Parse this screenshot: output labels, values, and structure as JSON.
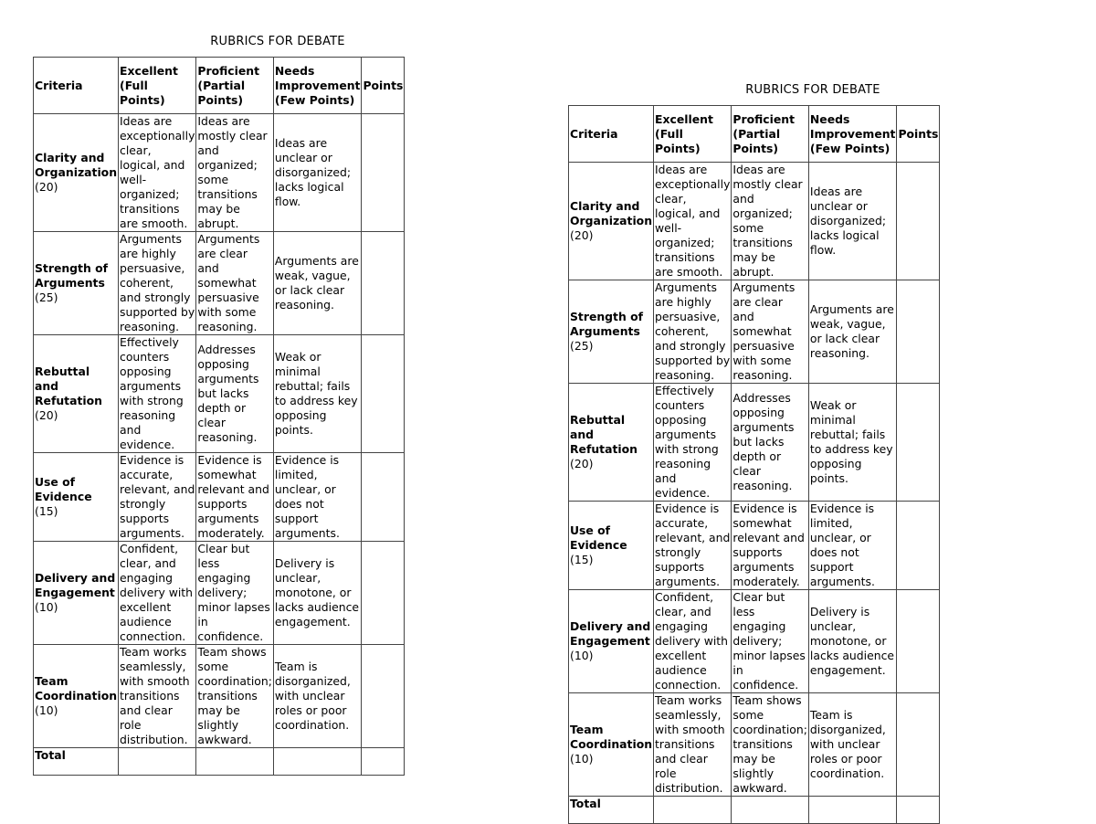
{
  "title": "RUBRICS FOR DEBATE",
  "headers": [
    "Criteria",
    "Excellent (Full Points)",
    "Proficient (Partial Points)",
    "Needs Improvement (Few Points)",
    "Points"
  ],
  "rows": [
    {
      "criterion": "Clarity and Organization",
      "points": "(20)",
      "excellent": "Ideas are exceptionally clear, logical, and well-organized; transitions are smooth.",
      "proficient": "Ideas are mostly clear and organized; some transitions may be abrupt.",
      "needs": "Ideas are unclear or disorganized; lacks logical flow.",
      "score": ""
    },
    {
      "criterion": "Strength of Arguments",
      "points": "(25)",
      "excellent": "Arguments are highly persuasive, coherent, and strongly supported by reasoning.",
      "proficient": "Arguments are clear and somewhat persuasive with some reasoning.",
      "needs": "Arguments are weak, vague, or lack clear reasoning.",
      "score": ""
    },
    {
      "criterion": "Rebuttal and Refutation",
      "points": "(20)",
      "excellent": "Effectively counters opposing arguments with strong reasoning and evidence.",
      "proficient": "Addresses opposing arguments but lacks depth or clear reasoning.",
      "needs": "Weak or minimal rebuttal; fails to address key opposing points.",
      "score": ""
    },
    {
      "criterion": "Use of Evidence",
      "points": "(15)",
      "excellent": "Evidence is accurate, relevant, and strongly supports arguments.",
      "proficient": "Evidence is somewhat relevant and supports arguments moderately.",
      "needs": "Evidence is limited, unclear, or does not support arguments.",
      "score": ""
    },
    {
      "criterion": "Delivery and Engagement",
      "points": "(10)",
      "excellent": "Confident, clear, and engaging delivery with excellent audience connection.",
      "proficient": "Clear but less engaging delivery; minor lapses in confidence.",
      "needs": "Delivery is unclear, monotone, or lacks audience engagement.",
      "score": ""
    },
    {
      "criterion": "Team Coordination",
      "points": "(10)",
      "excellent": "Team works seamlessly, with smooth transitions and clear role distribution.",
      "proficient": "Team shows some coordination; transitions may be slightly awkward.",
      "needs": "Team is disorganized, with unclear roles or poor coordination.",
      "score": ""
    }
  ],
  "total_label": "Total"
}
